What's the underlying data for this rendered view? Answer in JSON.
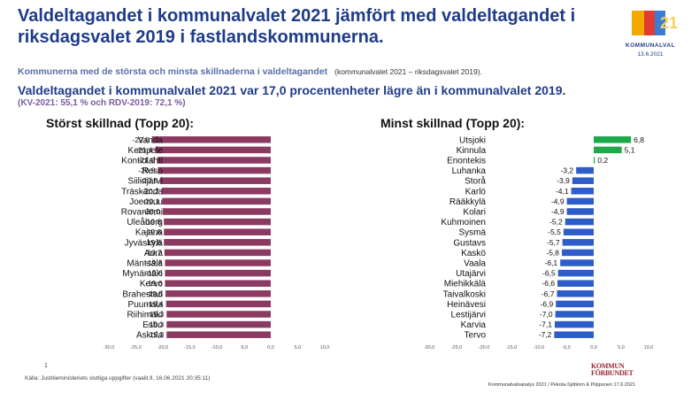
{
  "title": "Valdeltagandet i kommunalvalet 2021 jämfört med valdeltagandet i riksdagsvalet 2019 i fastlandskommunerna.",
  "logo": {
    "text": "KOMMUNALVAL",
    "date": "13.6.2021",
    "digits": "21"
  },
  "subtitle": "Kommunerna med de största och minsta skillnaderna i valdeltagandet",
  "subtitle_note": "(kommunalvalet 2021 – riksdagsvalet 2019).",
  "headline": "Valdeltagandet i kommunalvalet 2021 var 17,0 procentenheter lägre än i kommunalvalet 2019.",
  "sub_headline": "(KV-2021: 55,1 % och RDV-2019: 72,1 %)",
  "footnote": "1",
  "source": "Källa: Justitieministeriets slutliga uppgifter (vaalit.fi, 16.06.2021 20:35:11)",
  "credit": "Kommunalvalsanalys 2021 / Pekola-Sjöblom & Piipponen 17.6.2021",
  "publisher_logo": {
    "line1": "KOMMUN",
    "line2": "FÖRBUNDET"
  },
  "colors": {
    "left_bar": "#8b3a62",
    "positive_bar": "#1fa84a",
    "negative_bar": "#2e5cc8",
    "title": "#1f3c88"
  },
  "chart_data": [
    {
      "type": "bar",
      "orientation": "horizontal",
      "title": "Störst skillnad (Topp 20):",
      "categories": [
        "Vanda",
        "Kempele",
        "Kontiolahti",
        "Reso",
        "Siilinjärvi",
        "Träskända",
        "Joensuu",
        "Rovaniemi",
        "Uleåborg",
        "Kajana",
        "Jyväskylä",
        "Aura",
        "Mäntsälä",
        "Mynämäki",
        "Kervo",
        "Brahestad",
        "Puumala",
        "Riihimäki",
        "Esbo",
        "Askola"
      ],
      "values": [
        -22.0,
        -21.4,
        -21.0,
        -20.9,
        -20.5,
        -20.2,
        -20.1,
        -20.0,
        -19.8,
        -19.8,
        -19.8,
        -19.7,
        -19.6,
        -19.6,
        -19.6,
        -19.5,
        -19.4,
        -19.3,
        -19.3,
        -19.3
      ],
      "value_labels": [
        "-22,0",
        "-21,4",
        "-21,0",
        "-20,9",
        "-20,5",
        "-20,2",
        "-20,1",
        "-20,0",
        "-19,8",
        "-19,8",
        "-19,8",
        "-19,7",
        "-19,6",
        "-19,6",
        "-19,6",
        "-19,5",
        "-19,4",
        "-19,3",
        "-19,3",
        "-19,3"
      ],
      "xlim": [
        -30,
        10
      ],
      "ticks": [
        -30,
        -25,
        -20,
        -15,
        -10,
        -5,
        0,
        5,
        10
      ],
      "tick_labels": [
        "-30,0",
        "-25,0",
        "-20,0",
        "-15,0",
        "-10,0",
        "-5,0",
        "0,0",
        "5,0",
        "10,0"
      ]
    },
    {
      "type": "bar",
      "orientation": "horizontal",
      "title": "Minst skillnad (Topp 20):",
      "categories": [
        "Utsjoki",
        "Kinnula",
        "Enontekis",
        "Luhanka",
        "Storå",
        "Karlö",
        "Rääkkylä",
        "Kolari",
        "Kuhmoinen",
        "Sysmä",
        "Gustavs",
        "Kaskö",
        "Vaala",
        "Utajärvi",
        "Miehikkälä",
        "Taivalkoski",
        "Heinävesi",
        "Lestijärvi",
        "Karvia",
        "Tervo"
      ],
      "values": [
        6.8,
        5.1,
        0.2,
        -3.2,
        -3.9,
        -4.1,
        -4.9,
        -4.9,
        -5.2,
        -5.5,
        -5.7,
        -5.8,
        -6.1,
        -6.5,
        -6.6,
        -6.7,
        -6.9,
        -7.0,
        -7.1,
        -7.2
      ],
      "value_labels": [
        "6,8",
        "5,1",
        "0,2",
        "-3,2",
        "-3,9",
        "-4,1",
        "-4,9",
        "-4,9",
        "-5,2",
        "-5,5",
        "-5,7",
        "-5,8",
        "-6,1",
        "-6,5",
        "-6,6",
        "-6,7",
        "-6,9",
        "-7,0",
        "-7,1",
        "-7,2"
      ],
      "xlim": [
        -30,
        10
      ],
      "ticks": [
        -30,
        -25,
        -20,
        -15,
        -10,
        -5,
        0,
        5,
        10
      ],
      "tick_labels": [
        "-30,0",
        "-25,0",
        "-20,0",
        "-15,0",
        "-10,0",
        "-5,0",
        "0,0",
        "5,0",
        "10,0"
      ]
    }
  ]
}
